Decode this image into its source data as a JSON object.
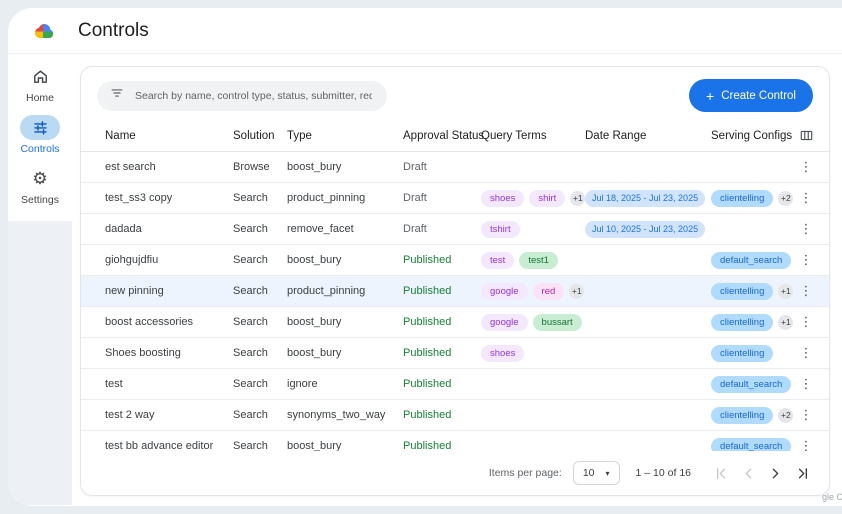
{
  "header": {
    "title": "Controls"
  },
  "sidebar": {
    "items": [
      {
        "id": "home",
        "label": "Home",
        "active": false
      },
      {
        "id": "controls",
        "label": "Controls",
        "active": true
      },
      {
        "id": "settings",
        "label": "Settings",
        "active": false
      }
    ]
  },
  "toolbar": {
    "search_placeholder": "Search by name, control type, status, submitter, requested on",
    "create_label": "Create Control"
  },
  "icons": {
    "kebab": "⋮",
    "gear": "⚙",
    "plus": "+",
    "caret_down": "▾"
  },
  "colors": {
    "accent_blue": "#1a73e8",
    "published_green": "#188038",
    "draft_gray": "#5f6368",
    "row_highlight": "#edf4fe",
    "sidebar_active_bg": "#b9daf2",
    "chip_purple_bg": "#f3e8fd",
    "chip_purple_text": "#9334e6",
    "chip_pink_bg": "#fbe3f7",
    "chip_pink_text": "#b0279c",
    "chip_green_bg": "#c9edd3",
    "chip_green_text": "#137333",
    "chip_blue_bg": "#b0dbfc",
    "chip_blue_text": "#1967d2",
    "chip_date_bg": "#d2e3fc",
    "chip_date_text": "#1a73e8"
  },
  "table": {
    "columns": [
      "Name",
      "Solution",
      "Type",
      "Approval Status",
      "Query Terms",
      "Date Range",
      "Serving Configs"
    ],
    "rows": [
      {
        "name": "est search",
        "solution": "Browse",
        "type": "boost_bury",
        "status": "Draft",
        "query_terms": [],
        "extra_terms": null,
        "date_range": null,
        "serving_configs": [],
        "extra_configs": null,
        "highlighted": false
      },
      {
        "name": "test_ss3 copy",
        "solution": "Search",
        "type": "product_pinning",
        "status": "Draft",
        "query_terms": [
          {
            "text": "shoes",
            "color": "purple"
          },
          {
            "text": "shirt",
            "color": "purple"
          }
        ],
        "extra_terms": "+1",
        "date_range": "Jul 18, 2025 - Jul 23, 2025",
        "serving_configs": [
          "clientelling"
        ],
        "extra_configs": "+2",
        "highlighted": false
      },
      {
        "name": "dadada",
        "solution": "Search",
        "type": "remove_facet",
        "status": "Draft",
        "query_terms": [
          {
            "text": "tshirt",
            "color": "purple"
          }
        ],
        "extra_terms": null,
        "date_range": "Jul 10, 2025 - Jul 23, 2025",
        "serving_configs": [],
        "extra_configs": null,
        "highlighted": false
      },
      {
        "name": "giohgujdfiu",
        "solution": "Search",
        "type": "boost_bury",
        "status": "Published",
        "query_terms": [
          {
            "text": "test",
            "color": "purple"
          },
          {
            "text": "test1",
            "color": "green"
          }
        ],
        "extra_terms": null,
        "date_range": null,
        "serving_configs": [
          "default_search"
        ],
        "extra_configs": null,
        "highlighted": false
      },
      {
        "name": "new pinning",
        "solution": "Search",
        "type": "product_pinning",
        "status": "Published",
        "query_terms": [
          {
            "text": "google",
            "color": "purple"
          },
          {
            "text": "red",
            "color": "pink"
          }
        ],
        "extra_terms": "+1",
        "date_range": null,
        "serving_configs": [
          "clientelling"
        ],
        "extra_configs": "+1",
        "highlighted": true
      },
      {
        "name": "boost accessories",
        "solution": "Search",
        "type": "boost_bury",
        "status": "Published",
        "query_terms": [
          {
            "text": "google",
            "color": "purple"
          },
          {
            "text": "bussart",
            "color": "green"
          }
        ],
        "extra_terms": null,
        "date_range": null,
        "serving_configs": [
          "clientelling"
        ],
        "extra_configs": "+1",
        "highlighted": false
      },
      {
        "name": "Shoes boosting",
        "solution": "Search",
        "type": "boost_bury",
        "status": "Published",
        "query_terms": [
          {
            "text": "shoes",
            "color": "purple"
          }
        ],
        "extra_terms": null,
        "date_range": null,
        "serving_configs": [
          "clientelling"
        ],
        "extra_configs": null,
        "highlighted": false
      },
      {
        "name": "test",
        "solution": "Search",
        "type": "ignore",
        "status": "Published",
        "query_terms": [],
        "extra_terms": null,
        "date_range": null,
        "serving_configs": [
          "default_search"
        ],
        "extra_configs": null,
        "highlighted": false
      },
      {
        "name": "test 2 way",
        "solution": "Search",
        "type": "synonyms_two_way",
        "status": "Published",
        "query_terms": [],
        "extra_terms": null,
        "date_range": null,
        "serving_configs": [
          "clientelling"
        ],
        "extra_configs": "+2",
        "highlighted": false
      },
      {
        "name": "test bb advance editor",
        "solution": "Search",
        "type": "boost_bury",
        "status": "Published",
        "query_terms": [],
        "extra_terms": null,
        "date_range": null,
        "serving_configs": [
          "default_search"
        ],
        "extra_configs": null,
        "highlighted": false
      }
    ]
  },
  "pagination": {
    "items_per_page_label": "Items per page:",
    "page_size": "10",
    "range_label": "1 – 10 of 16"
  },
  "watermark": "gle Cl"
}
